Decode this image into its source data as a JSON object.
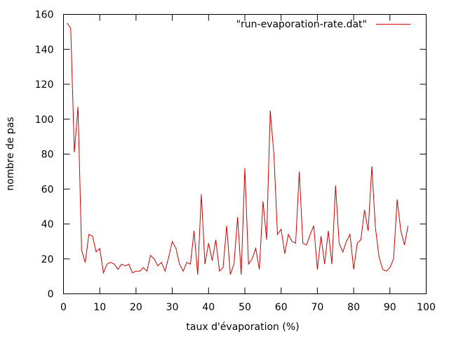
{
  "chart_data": {
    "type": "line",
    "title": "",
    "xlabel": "taux d'évaporation (%)",
    "ylabel": "nombre de pas",
    "xlim": [
      0,
      100
    ],
    "ylim": [
      0,
      160
    ],
    "xticks": [
      0,
      10,
      20,
      30,
      40,
      50,
      60,
      70,
      80,
      90,
      100
    ],
    "yticks": [
      0,
      20,
      40,
      60,
      80,
      100,
      120,
      140,
      160
    ],
    "grid": false,
    "legend_position": "top-right",
    "series": [
      {
        "name": "\"run-evaporation-rate.dat\"",
        "color": "#cc0000",
        "x": [
          1,
          2,
          3,
          4,
          5,
          6,
          7,
          8,
          9,
          10,
          11,
          12,
          13,
          14,
          15,
          16,
          17,
          18,
          19,
          20,
          21,
          22,
          23,
          24,
          25,
          26,
          27,
          28,
          29,
          30,
          31,
          32,
          33,
          34,
          35,
          36,
          37,
          38,
          39,
          40,
          41,
          42,
          43,
          44,
          45,
          46,
          47,
          48,
          49,
          50,
          51,
          52,
          53,
          54,
          55,
          56,
          57,
          58,
          59,
          60,
          61,
          62,
          63,
          64,
          65,
          66,
          67,
          68,
          69,
          70,
          71,
          72,
          73,
          74,
          75,
          76,
          77,
          78,
          79,
          80,
          81,
          82,
          83,
          84,
          85,
          86,
          87,
          88,
          89,
          90,
          91,
          92,
          93,
          94,
          95
        ],
        "y": [
          155,
          152,
          81,
          107,
          25,
          18,
          34,
          33,
          24,
          26,
          12,
          17,
          18,
          17,
          14,
          17,
          16,
          17,
          12,
          13,
          13,
          15,
          13,
          22,
          20,
          16,
          18,
          13,
          21,
          30,
          26,
          17,
          13,
          18,
          17,
          36,
          11,
          57,
          17,
          29,
          19,
          31,
          13,
          15,
          39,
          11,
          17,
          44,
          11,
          72,
          17,
          20,
          26,
          14,
          53,
          31,
          105,
          80,
          34,
          37,
          23,
          34,
          30,
          29,
          70,
          29,
          28,
          34,
          39,
          14,
          33,
          17,
          36,
          17,
          62,
          29,
          24,
          30,
          34,
          14,
          29,
          31,
          48,
          36,
          73,
          38,
          21,
          14,
          13,
          15,
          20,
          54,
          36,
          28,
          39
        ]
      }
    ]
  }
}
